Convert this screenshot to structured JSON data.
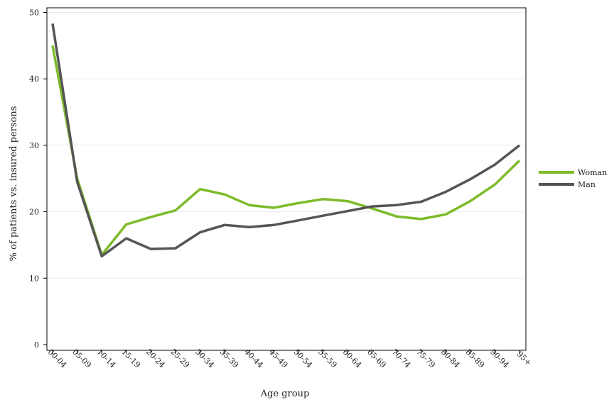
{
  "chart_data": {
    "type": "line",
    "xlabel": "Age group",
    "ylabel": "% of patients vs. insured persons",
    "categories": [
      "00-04",
      "05-09",
      "10-14",
      "15-19",
      "20-24",
      "25-29",
      "30-34",
      "35-39",
      "40-44",
      "45-49",
      "50-54",
      "55-59",
      "60-64",
      "65-69",
      "70-74",
      "75-79",
      "80-84",
      "85-89",
      "90-94",
      "95+"
    ],
    "y_ticks": [
      0,
      10,
      20,
      30,
      40,
      50
    ],
    "ylim": [
      0,
      50
    ],
    "grid": true,
    "legend_position": "right",
    "series": [
      {
        "name": "Woman",
        "color": "#7dbb2a",
        "values": [
          45.0,
          25.0,
          13.5,
          18.1,
          19.2,
          20.2,
          23.4,
          22.6,
          21.0,
          20.6,
          21.3,
          21.9,
          21.6,
          20.5,
          19.3,
          18.9,
          19.6,
          21.6,
          24.1,
          27.7
        ]
      },
      {
        "name": "Man",
        "color": "#555555",
        "values": [
          48.3,
          24.5,
          13.3,
          16.0,
          14.4,
          14.5,
          16.9,
          18.0,
          17.7,
          18.0,
          18.7,
          19.4,
          20.1,
          20.8,
          21.0,
          21.5,
          23.0,
          24.9,
          27.1,
          30.0
        ]
      }
    ]
  }
}
